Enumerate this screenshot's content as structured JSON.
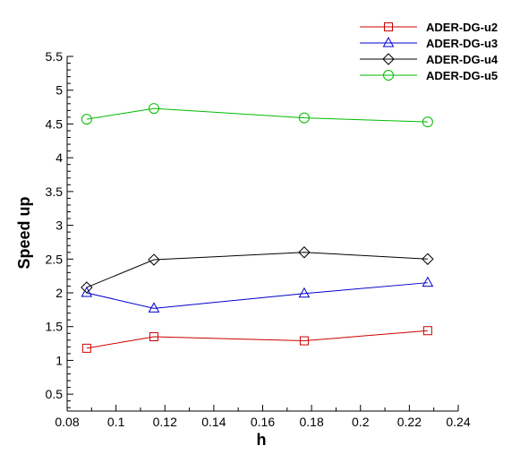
{
  "chart_data": {
    "type": "line",
    "xlabel": "h",
    "ylabel": "Speed up",
    "xlim": [
      0.08,
      0.24
    ],
    "ylim": [
      0.25,
      5.5
    ],
    "x_ticks": [
      0.08,
      0.1,
      0.12,
      0.14,
      0.16,
      0.18,
      0.2,
      0.22,
      0.24
    ],
    "x_tick_labels": [
      "0.08",
      "0.1",
      "0.12",
      "0.14",
      "0.16",
      "0.18",
      "0.2",
      "0.22",
      "0.24"
    ],
    "y_ticks": [
      0.5,
      1,
      1.5,
      2,
      2.5,
      3,
      3.5,
      4,
      4.5,
      5,
      5.5
    ],
    "y_tick_labels": [
      "0.5",
      "1",
      "1.5",
      "2",
      "2.5",
      "3",
      "3.5",
      "4",
      "4.5",
      "5",
      "5.5"
    ],
    "grid": false,
    "legend_position": "top-right",
    "x": [
      0.088,
      0.1155,
      0.177,
      0.2275
    ],
    "series": [
      {
        "name": "ADER-DG-u2",
        "color": "#cc0000",
        "marker": "square",
        "values": [
          1.18,
          1.35,
          1.29,
          1.44
        ]
      },
      {
        "name": "ADER-DG-u3",
        "color": "#0000cc",
        "marker": "triangle",
        "values": [
          2.0,
          1.77,
          1.99,
          2.15
        ]
      },
      {
        "name": "ADER-DG-u4",
        "color": "#000000",
        "marker": "diamond",
        "values": [
          2.08,
          2.49,
          2.6,
          2.5
        ]
      },
      {
        "name": "ADER-DG-u5",
        "color": "#00bb00",
        "marker": "circle",
        "values": [
          4.57,
          4.73,
          4.59,
          4.53
        ]
      }
    ]
  }
}
